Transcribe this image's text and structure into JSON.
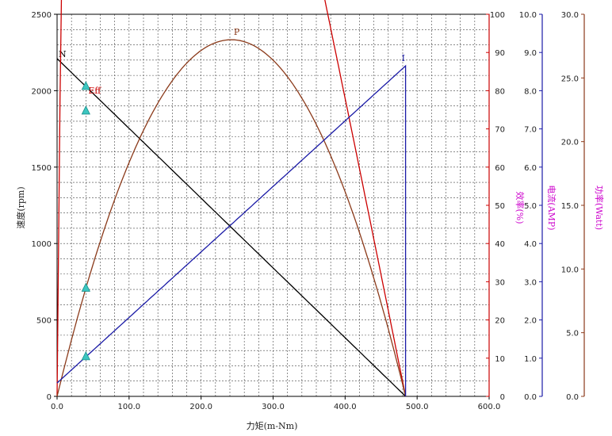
{
  "chart_data": {
    "type": "line",
    "xlabel": "力矩(m-Nm)",
    "x_ticks": [
      "0.0",
      "100.0",
      "200.0",
      "300.0",
      "400.0",
      "500.0",
      "600.0"
    ],
    "xlim": [
      0,
      600
    ],
    "axes": {
      "speed": {
        "label": "速度(rpm)",
        "range": [
          0,
          2500
        ],
        "ticks": [
          "0",
          "500",
          "1000",
          "1500",
          "2000",
          "2500"
        ],
        "color": "#000000"
      },
      "efficiency": {
        "label": "效率(%)",
        "range": [
          0,
          100
        ],
        "ticks": [
          "0",
          "10",
          "20",
          "30",
          "40",
          "50",
          "60",
          "70",
          "80",
          "90",
          "100"
        ],
        "color": "#cc0000"
      },
      "current": {
        "label": "电流(AMP)",
        "range": [
          0,
          10
        ],
        "ticks": [
          "0.0",
          "1.0",
          "2.0",
          "3.0",
          "4.0",
          "5.0",
          "6.0",
          "7.0",
          "8.0",
          "9.0",
          "10.0"
        ],
        "color": "#1a1aa6"
      },
      "power": {
        "label": "功率(Watt)",
        "range": [
          0,
          30
        ],
        "ticks": [
          "0.0",
          "5.0",
          "10.0",
          "15.0",
          "20.0",
          "25.0",
          "30.0"
        ],
        "color": "#8b3a1a"
      }
    },
    "grid": true,
    "series": [
      {
        "name": "N",
        "axis": "speed",
        "color": "#000000",
        "model": "linear",
        "no_load": 2210,
        "stall_torque": 484
      },
      {
        "name": "Eff",
        "axis": "efficiency",
        "color": "#cc0000",
        "model": "efficiency",
        "no_load_current": 0.35,
        "stall_current": 8.65,
        "no_load_speed": 2210,
        "stall_torque": 484
      },
      {
        "name": "P",
        "axis": "power",
        "color": "#8b3a1a",
        "model": "power",
        "no_load_speed": 2210,
        "stall_torque": 484
      },
      {
        "name": "I",
        "axis": "current",
        "color": "#1a1aa6",
        "model": "linear",
        "no_load": 0.35,
        "stall": 8.65,
        "stall_torque": 484
      }
    ],
    "markers": [
      {
        "x": 40,
        "axis": "speed",
        "y": 2028
      },
      {
        "x": 40,
        "axis": "efficiency",
        "y": 74.7
      },
      {
        "x": 40,
        "axis": "power",
        "y": 8.5
      },
      {
        "x": 40,
        "axis": "current",
        "y": 1.04
      }
    ],
    "marker_color": "#3cc6c0"
  }
}
